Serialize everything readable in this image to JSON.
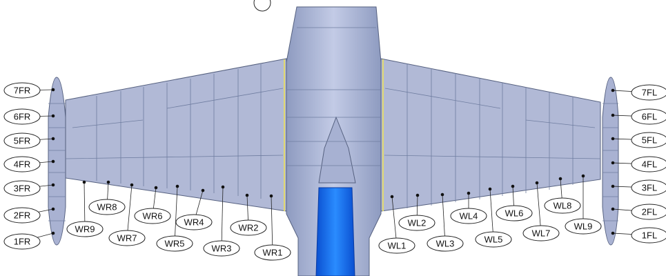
{
  "labels": {
    "wing_right": [
      "WR1",
      "WR2",
      "WR3",
      "WR4",
      "WR5",
      "WR6",
      "WR7",
      "WR8",
      "WR9"
    ],
    "wing_left": [
      "WL1",
      "WL2",
      "WL3",
      "WL4",
      "WL5",
      "WL6",
      "WL7",
      "WL8",
      "WL9"
    ],
    "tip_right": [
      "1FR",
      "2FR",
      "3FR",
      "4FR",
      "5FR",
      "6FR",
      "7FR"
    ],
    "tip_left": [
      "1FL",
      "2FL",
      "3FL",
      "4FL",
      "5FL",
      "6FL",
      "7FL"
    ]
  }
}
